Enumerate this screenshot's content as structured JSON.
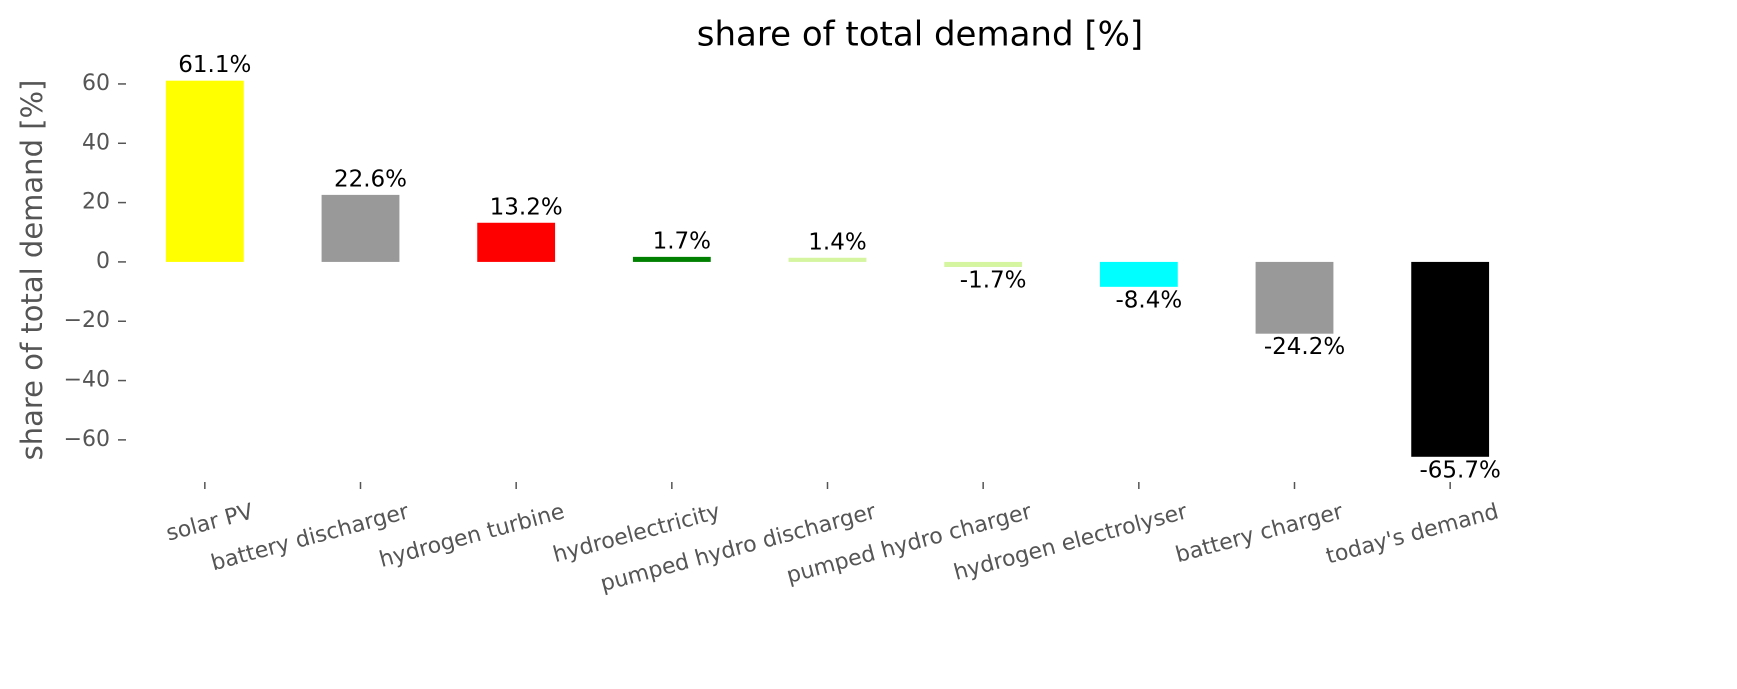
{
  "chart_data": {
    "type": "bar",
    "title": "share of total demand [%]",
    "y_label": "share of total demand [%]",
    "categories": [
      "solar PV",
      "battery discharger",
      "hydrogen turbine",
      "hydroelectricity",
      "pumped hydro discharger",
      "pumped hydro charger",
      "hydrogen electrolyser",
      "battery charger",
      "today's demand"
    ],
    "values": [
      61.1,
      22.6,
      13.2,
      1.7,
      1.4,
      -1.7,
      -8.4,
      -24.2,
      -65.7
    ],
    "value_labels": [
      "61.1%",
      "22.6%",
      "13.2%",
      "1.7%",
      "1.4%",
      "-1.7%",
      "-8.4%",
      "-24.2%",
      "-65.7%"
    ],
    "colors": [
      "#ffff00",
      "#999999",
      "#ff0000",
      "#008000",
      "#d5f5a0",
      "#d5f5a0",
      "#00ffff",
      "#999999",
      "#000000"
    ],
    "ylim": [
      -74.2,
      67.4
    ],
    "yticks": [
      {
        "value": -60,
        "label": "−60"
      },
      {
        "value": -40,
        "label": "−40"
      },
      {
        "value": -20,
        "label": "−20"
      },
      0,
      20,
      40,
      60
    ],
    "grid": false
  }
}
